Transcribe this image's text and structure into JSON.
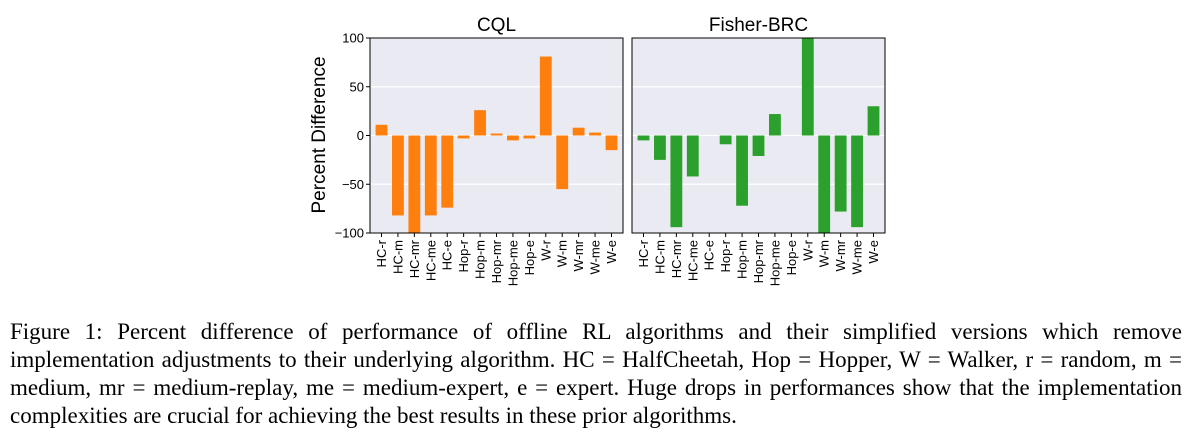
{
  "chart_data": [
    {
      "type": "bar",
      "title": "CQL",
      "ylabel": "Percent Difference",
      "ylim": [
        -100,
        100
      ],
      "yticks": [
        100,
        50,
        0,
        -50,
        -100
      ],
      "ytick_labels": [
        "100",
        "50",
        "0",
        "−50",
        "−100"
      ],
      "grid": true,
      "color": "#ff7f0e",
      "categories": [
        "HC-r",
        "HC-m",
        "HC-mr",
        "HC-me",
        "HC-e",
        "Hop-r",
        "Hop-m",
        "Hop-mr",
        "Hop-me",
        "Hop-e",
        "W-r",
        "W-m",
        "W-mr",
        "W-me",
        "W-e"
      ],
      "values": [
        11,
        -82,
        -100,
        -82,
        -74,
        -3,
        26,
        2,
        -5,
        -3,
        81,
        -55,
        8,
        3,
        -15
      ]
    },
    {
      "type": "bar",
      "title": "Fisher-BRC",
      "ylim": [
        -100,
        100
      ],
      "grid": true,
      "color": "#2ca02c",
      "categories": [
        "HC-r",
        "HC-m",
        "HC-mr",
        "HC-me",
        "HC-e",
        "Hop-r",
        "Hop-m",
        "Hop-mr",
        "Hop-me",
        "Hop-e",
        "W-r",
        "W-m",
        "W-mr",
        "W-me",
        "W-e"
      ],
      "values": [
        -5,
        -25,
        -94,
        -42,
        0,
        -9,
        -72,
        -21,
        22,
        0,
        100,
        -100,
        -78,
        -94,
        30
      ]
    }
  ],
  "caption": "Figure 1: Percent difference of performance of offline RL algorithms and their simplified versions which remove implementation adjustments to their underlying algorithm. HC = HalfCheetah, Hop = Hopper, W = Walker, r = random, m = medium, mr = medium-replay, me = medium-expert, e = expert. Huge drops in performances show that the implementation complexities are crucial for achieving the best results in these prior algorithms."
}
